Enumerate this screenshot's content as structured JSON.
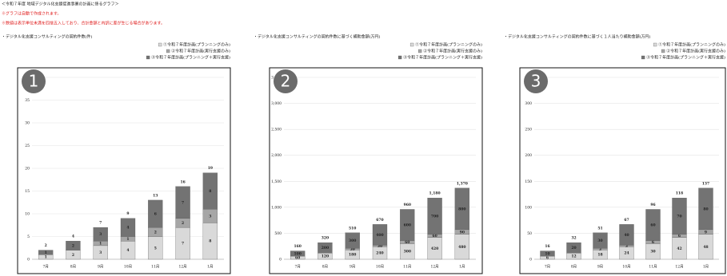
{
  "header": {
    "title": "＜令和７年度 地域デジタル化支援促進事業の計画に係るグラフ＞",
    "notes": [
      "※グラフは自動で作成されます。",
      "※数値は表示単位未満を四捨五入しており、合計金額と内訳に差が生じる場合があります。"
    ]
  },
  "chart_data": [
    {
      "type": "bar",
      "stacked": true,
      "badge": "1",
      "title": "・デジタル化支援コンサルティングの契約件数(件)",
      "categories": [
        "7月",
        "8月",
        "9月",
        "10月",
        "11月",
        "12月",
        "1月"
      ],
      "series": [
        {
          "name": "①令和７年度計画(プランニングのみ)",
          "color": "#d9d9d9",
          "values": [
            1,
            2,
            3,
            4,
            5,
            7,
            8
          ]
        },
        {
          "name": "②令和７年度計画(実行支援のみ)",
          "color": "#a6a6a6",
          "values": [
            0,
            0,
            1,
            1,
            2,
            2,
            3
          ]
        },
        {
          "name": "③令和７年度計画(プランニング＋実行支援)",
          "color": "#737373",
          "values": [
            1,
            2,
            3,
            4,
            6,
            7,
            8
          ]
        }
      ],
      "totals": [
        2,
        4,
        7,
        9,
        13,
        16,
        19
      ],
      "ylim": [
        0,
        40
      ],
      "yticks": [
        0,
        5,
        10,
        15,
        20,
        25,
        30,
        35,
        40
      ],
      "grid": true
    },
    {
      "type": "bar",
      "stacked": true,
      "badge": "2",
      "title": "・デジタル化支援コンサルティングの契約件数に基づく補助金額(万円)",
      "categories": [
        "7月",
        "8月",
        "9月",
        "10月",
        "11月",
        "12月",
        "1月"
      ],
      "series": [
        {
          "name": "①令和７年度計画(プランニングのみ)",
          "color": "#d9d9d9",
          "values": [
            60,
            120,
            180,
            240,
            300,
            420,
            480
          ]
        },
        {
          "name": "②令和７年度計画(実行支援のみ)",
          "color": "#a6a6a6",
          "values": [
            0,
            0,
            30,
            30,
            60,
            60,
            90
          ]
        },
        {
          "name": "③令和７年度計画(プランニング＋実行支援)",
          "color": "#737373",
          "values": [
            100,
            200,
            300,
            400,
            600,
            700,
            800
          ]
        }
      ],
      "totals": [
        160,
        320,
        510,
        670,
        960,
        1180,
        1370
      ],
      "total_labels": [
        "160",
        "320",
        "510",
        "670",
        "960",
        "1,180",
        "1,370"
      ],
      "ylim": [
        0,
        3500
      ],
      "yticks": [
        0,
        500,
        {
          "value": 1000,
          "label": "1,000"
        },
        {
          "value": 1500,
          "label": "1,500"
        },
        {
          "value": 2000,
          "label": "2,000"
        },
        {
          "value": 2500,
          "label": "2,500"
        },
        {
          "value": 3000,
          "label": "3,000"
        },
        {
          "value": 3500,
          "label": "3,500"
        }
      ],
      "grid": true
    },
    {
      "type": "bar",
      "stacked": true,
      "badge": "3",
      "title": "・デジタル化支援コンサルティングの契約件数に基づく１人当たり補助金額(万円)",
      "categories": [
        "7月",
        "8月",
        "9月",
        "10月",
        "11月",
        "12月",
        "1月"
      ],
      "series": [
        {
          "name": "①令和７年度計画(プランニングのみ)",
          "color": "#d9d9d9",
          "values": [
            6,
            12,
            18,
            24,
            30,
            42,
            48
          ]
        },
        {
          "name": "②令和７年度計画(実行支援のみ)",
          "color": "#a6a6a6",
          "values": [
            0,
            0,
            3,
            3,
            6,
            6,
            9
          ]
        },
        {
          "name": "③令和７年度計画(プランニング＋実行支援)",
          "color": "#737373",
          "values": [
            10,
            20,
            30,
            40,
            60,
            70,
            80
          ]
        }
      ],
      "totals": [
        16,
        32,
        51,
        67,
        96,
        118,
        137
      ],
      "ylim": [
        0,
        350
      ],
      "yticks": [
        0,
        50,
        100,
        150,
        200,
        250,
        300,
        350
      ],
      "grid": true
    }
  ]
}
